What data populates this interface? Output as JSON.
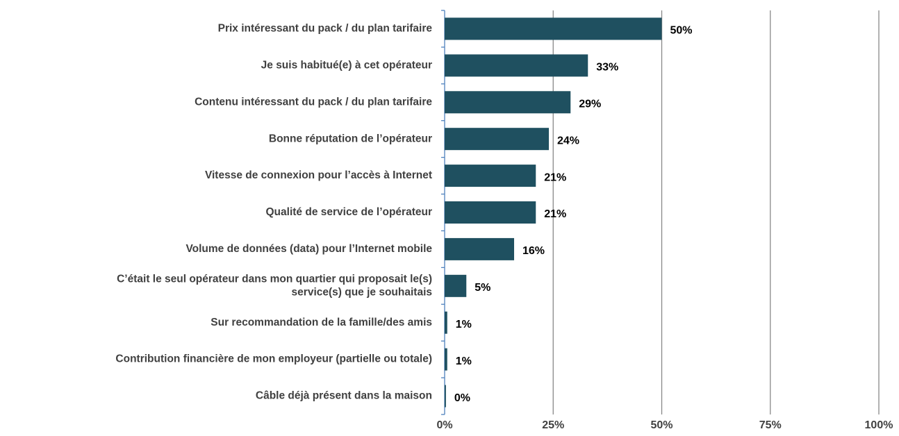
{
  "chart_data": {
    "type": "bar",
    "orientation": "horizontal",
    "categories": [
      "Prix intéressant du pack / du plan tarifaire",
      "Je suis habitué(e) à cet opérateur",
      "Contenu intéressant du pack / du plan tarifaire",
      "Bonne réputation de l’opérateur",
      "Vitesse de connexion pour l’accès à Internet",
      "Qualité de service de l’opérateur",
      "Volume de données (data) pour l’Internet mobile",
      "C’était le seul opérateur dans mon quartier qui proposait le(s)\nservice(s) que je souhaitais",
      "Sur recommandation de la famille/des amis",
      "Contribution financière de mon employeur (partielle ou totale)",
      "Câble déjà présent dans la maison"
    ],
    "values": [
      50,
      33,
      29,
      24,
      21,
      21,
      16,
      5,
      0.6,
      0.6,
      0.3
    ],
    "value_labels": [
      "50%",
      "33%",
      "29%",
      "24%",
      "21%",
      "21%",
      "16%",
      "5%",
      "1%",
      "1%",
      "0%"
    ],
    "color": "#1f5060",
    "xlim": [
      0,
      100
    ],
    "xticks": [
      {
        "value": 0,
        "label": "0%"
      },
      {
        "value": 25,
        "label": "25%"
      },
      {
        "value": 50,
        "label": "50%"
      },
      {
        "value": 75,
        "label": "75%"
      },
      {
        "value": 100,
        "label": "100%"
      }
    ],
    "grid": true
  }
}
